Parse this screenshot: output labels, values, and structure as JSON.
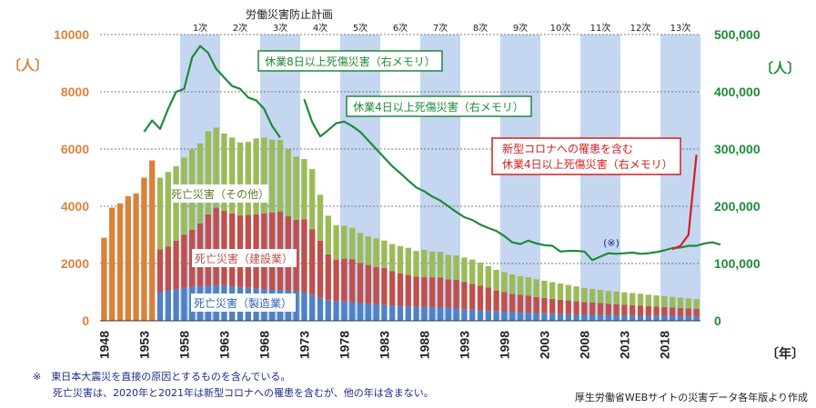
{
  "chart_data": {
    "type": "bar",
    "title": "労働災害防止計画",
    "left_axis": {
      "unit": "〔人〕",
      "ylim": [
        0,
        10000
      ],
      "ticks": [
        "0",
        "2000",
        "4000",
        "6000",
        "8000",
        "10000"
      ]
    },
    "right_axis": {
      "unit": "〔人〕",
      "ylim": [
        0,
        500000
      ],
      "ticks": [
        "0",
        "100,000",
        "200,000",
        "300,000",
        "400,000",
        "500,000"
      ]
    },
    "x_unit": "〔年〕",
    "x_start": 1948,
    "x_end": 2022,
    "x_ticks": [
      "1948",
      "1953",
      "1958",
      "1963",
      "1968",
      "1973",
      "1978",
      "1983",
      "1988",
      "1993",
      "1998",
      "2003",
      "2008",
      "2013",
      "2018"
    ],
    "plans": [
      {
        "label": "1次",
        "start": 1958,
        "end": 1962
      },
      {
        "label": "2次",
        "start": 1963,
        "end": 1967
      },
      {
        "label": "3次",
        "start": 1968,
        "end": 1972
      },
      {
        "label": "4次",
        "start": 1973,
        "end": 1977
      },
      {
        "label": "5次",
        "start": 1978,
        "end": 1982
      },
      {
        "label": "6次",
        "start": 1983,
        "end": 1987
      },
      {
        "label": "7次",
        "start": 1988,
        "end": 1992
      },
      {
        "label": "8次",
        "start": 1993,
        "end": 1997
      },
      {
        "label": "9次",
        "start": 1998,
        "end": 2002
      },
      {
        "label": "10次",
        "start": 2003,
        "end": 2007
      },
      {
        "label": "11次",
        "start": 2008,
        "end": 2012
      },
      {
        "label": "12次",
        "start": 2013,
        "end": 2017
      },
      {
        "label": "13次",
        "start": 2018,
        "end": 2022
      }
    ],
    "colors": {
      "total_early": "#d9823c",
      "manufacturing": "#4f81c9",
      "construction": "#c0504d",
      "other": "#9bbb59",
      "lost8": "#1f8a3a",
      "lost4": "#1f8a3a",
      "covid": "#d61e1e",
      "band": "#c5d7f0",
      "axis_left": "#d9823c",
      "axis_right": "#1f8a3a"
    },
    "series": [
      {
        "name": "死亡災害（製造業）",
        "years_start": 1955,
        "values": [
          1000,
          1050,
          1100,
          1150,
          1180,
          1200,
          1220,
          1250,
          1240,
          1200,
          1180,
          1150,
          1120,
          1100,
          1080,
          1070,
          1050,
          1030,
          1000,
          900,
          800,
          720,
          690,
          670,
          650,
          620,
          600,
          580,
          550,
          530,
          510,
          500,
          490,
          480,
          470,
          460,
          450,
          430,
          410,
          390,
          380,
          360,
          340,
          320,
          300,
          290,
          280,
          270,
          260,
          250,
          240,
          230,
          220,
          210,
          205,
          200,
          195,
          190,
          185,
          180,
          175,
          170,
          165,
          160,
          155,
          150,
          145,
          140
        ]
      },
      {
        "name": "死亡災害（建設業）",
        "years_start": 1955,
        "values": [
          1500,
          1550,
          1700,
          1850,
          2000,
          2200,
          2500,
          2700,
          2600,
          2550,
          2500,
          2550,
          2600,
          2650,
          2700,
          2750,
          2600,
          2500,
          2550,
          2300,
          2000,
          1600,
          1450,
          1500,
          1500,
          1400,
          1350,
          1300,
          1300,
          1200,
          1150,
          1100,
          1050,
          1050,
          1050,
          1050,
          1000,
          1000,
          950,
          900,
          850,
          800,
          720,
          680,
          640,
          620,
          600,
          560,
          540,
          520,
          500,
          480,
          460,
          440,
          430,
          420,
          400,
          390,
          380,
          370,
          360,
          340,
          330,
          320,
          310,
          300,
          290,
          280
        ]
      },
      {
        "name": "死亡災害（その他）",
        "years_start": 1955,
        "values": [
          2500,
          2600,
          2600,
          2700,
          2800,
          2800,
          2900,
          2800,
          2700,
          2650,
          2550,
          2550,
          2650,
          2650,
          2550,
          2500,
          2350,
          2200,
          2100,
          2100,
          1600,
          1350,
          1200,
          1150,
          1100,
          1050,
          1000,
          1000,
          950,
          950,
          950,
          950,
          900,
          950,
          900,
          900,
          850,
          850,
          850,
          850,
          800,
          750,
          720,
          700,
          680,
          650,
          640,
          620,
          600,
          580,
          560,
          540,
          520,
          500,
          480,
          460,
          450,
          440,
          430,
          420,
          410,
          400,
          390,
          380,
          370,
          360,
          350,
          340
        ]
      },
      {
        "name": "死亡災害（合計・初期）",
        "years_start": 1948,
        "values": [
          2900,
          3950,
          4100,
          4350,
          4450,
          5000,
          5600
        ]
      },
      {
        "name": "休業8日以上死傷災害（右メモリ）",
        "years_start": 1953,
        "values": [
          330000,
          350000,
          335000,
          370000,
          400000,
          405000,
          460000,
          480000,
          468000,
          440000,
          425000,
          410000,
          405000,
          390000,
          385000,
          370000,
          340000,
          320000
        ]
      },
      {
        "name": "休業4日以上死傷災害（右メモリ）",
        "years_start": 1973,
        "values": [
          387000,
          347000,
          322000,
          333000,
          345000,
          348000,
          340000,
          330000,
          315000,
          300000,
          285000,
          270000,
          258000,
          245000,
          233000,
          226000,
          217000,
          210000,
          200000,
          190000,
          181000,
          176000,
          168000,
          162000,
          157000,
          148000,
          137000,
          134000,
          140000,
          135000,
          132000,
          131000,
          121000,
          122000,
          122000,
          121000,
          106000,
          112000,
          118000,
          117000,
          118000,
          119000,
          117000,
          118000,
          120000,
          123000,
          127000,
          128000,
          131000,
          131000,
          135000,
          137000,
          133000
        ]
      },
      {
        "name": "新型コロナへの罹患を含む休業4日以上死傷災害（右メモリ）",
        "years_start": 2019,
        "values": [
          125000,
          131000,
          150000,
          290000
        ]
      }
    ],
    "annotations": [
      {
        "text": "休業8日以上死傷災害（右メモリ）"
      },
      {
        "text": "休業4日以上死傷災害（右メモリ）"
      },
      {
        "text": "新型コロナへの罹患を含む"
      },
      {
        "text": "休業4日以上死傷災害（右メモリ）"
      },
      {
        "text": "死亡災害（その他）"
      },
      {
        "text": "死亡災害（建設業）"
      },
      {
        "text": "死亡災害（製造業）"
      },
      {
        "text": "(※)"
      }
    ]
  },
  "footnote": {
    "line1": "※　東日本大震災を直接の原因とするものを含んでいる。",
    "line2": "　　死亡災害は、2020年と2021年は新型コロナへの罹患を含むが、他の年は含まない。",
    "source": "厚生労働省WEBサイトの災害データ各年版より作成"
  }
}
